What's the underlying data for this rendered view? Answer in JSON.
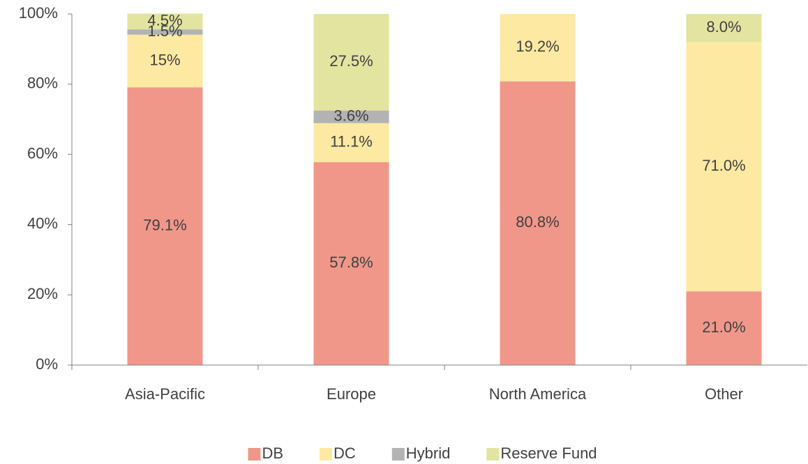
{
  "chart_data": {
    "type": "stacked-bar",
    "categories": [
      "Asia-Pacific",
      "Europe",
      "North America",
      "Other"
    ],
    "series": [
      {
        "name": "DB",
        "color": "#f0978a",
        "values": [
          79.1,
          57.8,
          80.8,
          21.0
        ],
        "value_labels": [
          "79.1%",
          "57.8%",
          "80.8%",
          "21.0%"
        ]
      },
      {
        "name": "DC",
        "color": "#fde9a2",
        "values": [
          15,
          11.1,
          19.2,
          71.0
        ],
        "value_labels": [
          "15%",
          "11.1%",
          "19.2%",
          "71.0%"
        ]
      },
      {
        "name": "Hybrid",
        "color": "#b3b3b3",
        "values": [
          1.5,
          3.6,
          null,
          null
        ],
        "value_labels": [
          "1.5%",
          "3.6%",
          null,
          null
        ]
      },
      {
        "name": "Reserve Fund",
        "color": "#e2e4a0",
        "values": [
          4.5,
          27.5,
          null,
          8.0
        ],
        "value_labels": [
          "4.5%",
          "27.5%",
          null,
          "8.0%"
        ]
      }
    ],
    "ylim": [
      0,
      100
    ],
    "yticks": [
      {
        "value": 0,
        "label": "0%"
      },
      {
        "value": 20,
        "label": "20%"
      },
      {
        "value": 40,
        "label": "40%"
      },
      {
        "value": 60,
        "label": "60%"
      },
      {
        "value": 80,
        "label": "80%"
      },
      {
        "value": 100,
        "label": "100%"
      }
    ],
    "legend": "bottom"
  }
}
